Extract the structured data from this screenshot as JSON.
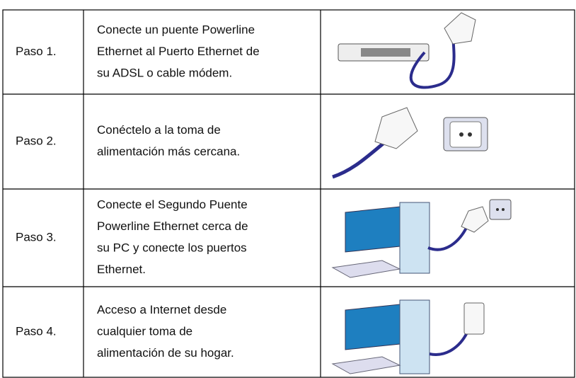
{
  "table": {
    "rows": [
      {
        "step": "Paso 1.",
        "lines": [
          "Conecte un puente Powerline",
          "Ethernet al Puerto Ethernet de",
          "su ADSL o cable módem."
        ]
      },
      {
        "step": "Paso 2.",
        "lines": [
          "Conéctelo a la toma de",
          "alimentación más cercana."
        ]
      },
      {
        "step": "Paso 3.",
        "lines": [
          "Conecte el Segundo Puente",
          "Powerline Ethernet cerca de",
          "su PC y conecte los puertos",
          "Ethernet."
        ]
      },
      {
        "step": "Paso 4.",
        "lines": [
          "Acceso a Internet desde",
          "cualquier toma de",
          "alimentación de su hogar."
        ]
      }
    ]
  }
}
